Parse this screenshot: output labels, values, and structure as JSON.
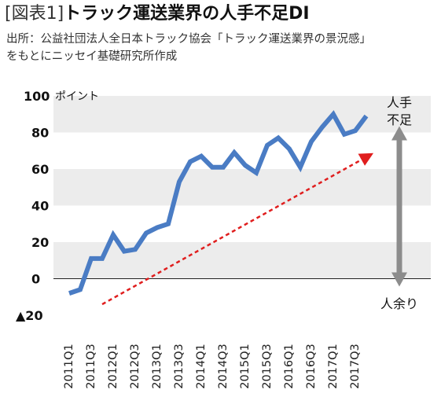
{
  "header": {
    "title_bracket": "[図表1]",
    "title_main": "トラック運送業界の人手不足DI",
    "source_line1": "出所：公益社団法人全日本トラック協会「トラック運送業界の景況感」",
    "source_line2": "をもとにニッセイ基礎研究所作成"
  },
  "colors": {
    "line": "#4a7cc4",
    "band_light": "#ececec",
    "arrow_trend": "#e01e1e",
    "arrow_gray": "#8c8c8c"
  },
  "chart_data": {
    "type": "line",
    "title": "トラック運送業界の人手不足DI",
    "ylim": [
      -20,
      100
    ],
    "yticks": [
      {
        "value": 100,
        "label": "100"
      },
      {
        "value": 80,
        "label": "80"
      },
      {
        "value": 60,
        "label": "60"
      },
      {
        "value": 40,
        "label": "40"
      },
      {
        "value": 20,
        "label": "20"
      },
      {
        "value": 0,
        "label": "0"
      },
      {
        "value": -20,
        "label": "▲20"
      }
    ],
    "yunit": "ポイント",
    "x": [
      "2011Q1",
      "2011Q2",
      "2011Q3",
      "2011Q4",
      "2012Q1",
      "2012Q2",
      "2012Q3",
      "2012Q4",
      "2013Q1",
      "2013Q2",
      "2013Q3",
      "2013Q4",
      "2014Q1",
      "2014Q2",
      "2014Q3",
      "2014Q4",
      "2015Q1",
      "2015Q2",
      "2015Q3",
      "2015Q4",
      "2016Q1",
      "2016Q2",
      "2016Q3",
      "2016Q4",
      "2017Q1",
      "2017Q2",
      "2017Q3",
      "2017Q4"
    ],
    "xtick_labels": [
      "2011Q1",
      "2011Q3",
      "2012Q1",
      "2012Q3",
      "2013Q1",
      "2013Q3",
      "2014Q1",
      "2014Q3",
      "2015Q1",
      "2015Q3",
      "2016Q1",
      "2016Q3",
      "2017Q1",
      "2017Q3"
    ],
    "series": [
      {
        "values": [
          -8,
          -6,
          11,
          11,
          24,
          15,
          16,
          25,
          28,
          30,
          53,
          64,
          67,
          61,
          61,
          69,
          62,
          58,
          73,
          77,
          71,
          61,
          75,
          83,
          90,
          79,
          81,
          89
        ]
      }
    ],
    "annotations": {
      "top": [
        "人手",
        "不足"
      ],
      "bottom": "人余り"
    },
    "trend_arrow": {
      "from": {
        "x": "2011Q4",
        "y": -14
      },
      "to": {
        "x": "2017Q4",
        "y": 68
      }
    }
  }
}
